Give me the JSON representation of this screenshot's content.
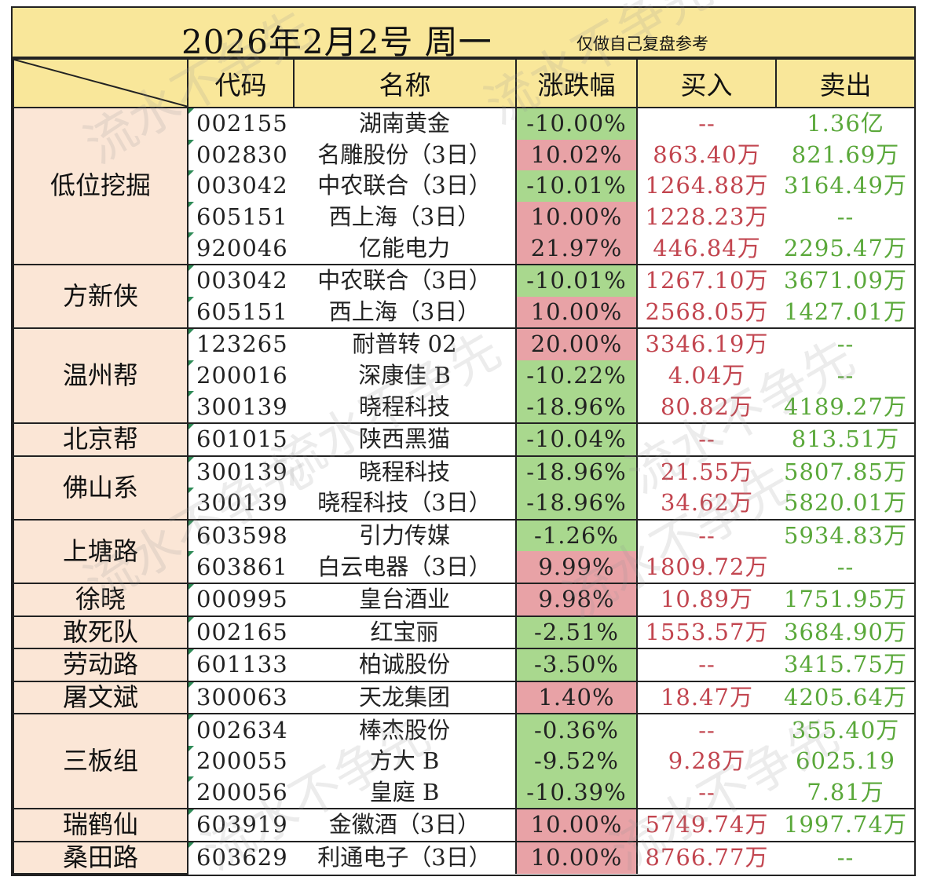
{
  "title": "2026年2月2号  周一",
  "subtitle": "仅做自己复盘参考",
  "watermark": "流水不争先",
  "headers": [
    "代码",
    "名称",
    "涨跌幅",
    "买入",
    "卖出"
  ],
  "colors": {
    "header_bg": "#f9e79a",
    "group_bg": "#fbe6d6",
    "up_bg": "#e8a2a6",
    "down_bg": "#a9d88e",
    "buy_text": "#c2454f",
    "sell_text": "#5aa83a"
  },
  "groups": [
    {
      "name": "低位挖掘",
      "rows": [
        {
          "code": "002155",
          "name": "湖南黄金",
          "change": "-10.00%",
          "dir": "down",
          "buy": "--",
          "sell": "1.36亿"
        },
        {
          "code": "002830",
          "name": "名雕股份（3日）",
          "change": "10.02%",
          "dir": "up",
          "buy": "863.40万",
          "sell": "821.69万"
        },
        {
          "code": "003042",
          "name": "中农联合（3日）",
          "change": "-10.01%",
          "dir": "down",
          "buy": "1264.88万",
          "sell": "3164.49万"
        },
        {
          "code": "605151",
          "name": "西上海（3日）",
          "change": "10.00%",
          "dir": "up",
          "buy": "1228.23万",
          "sell": "--"
        },
        {
          "code": "920046",
          "name": "亿能电力",
          "change": "21.97%",
          "dir": "up",
          "buy": "446.84万",
          "sell": "2295.47万"
        }
      ]
    },
    {
      "name": "方新侠",
      "rows": [
        {
          "code": "003042",
          "name": "中农联合（3日）",
          "change": "-10.01%",
          "dir": "down",
          "buy": "1267.10万",
          "sell": "3671.09万"
        },
        {
          "code": "605151",
          "name": "西上海（3日）",
          "change": "10.00%",
          "dir": "up",
          "buy": "2568.05万",
          "sell": "1427.01万"
        }
      ]
    },
    {
      "name": "温州帮",
      "rows": [
        {
          "code": "123265",
          "name": "耐普转 02",
          "change": "20.00%",
          "dir": "up",
          "buy": "3346.19万",
          "sell": "--"
        },
        {
          "code": "200016",
          "name": "深康佳 B",
          "change": "-10.22%",
          "dir": "down",
          "buy": "4.04万",
          "sell": "--"
        },
        {
          "code": "300139",
          "name": "晓程科技",
          "change": "-18.96%",
          "dir": "down",
          "buy": "80.82万",
          "sell": "4189.27万"
        }
      ]
    },
    {
      "name": "北京帮",
      "rows": [
        {
          "code": "601015",
          "name": "陕西黑猫",
          "change": "-10.04%",
          "dir": "down",
          "buy": "--",
          "sell": "813.51万"
        }
      ]
    },
    {
      "name": "佛山系",
      "rows": [
        {
          "code": "300139",
          "name": "晓程科技",
          "change": "-18.96%",
          "dir": "down",
          "buy": "21.55万",
          "sell": "5807.85万"
        },
        {
          "code": "300139",
          "name": "晓程科技（3日）",
          "change": "-18.96%",
          "dir": "down",
          "buy": "34.62万",
          "sell": "5820.01万"
        }
      ]
    },
    {
      "name": "上塘路",
      "rows": [
        {
          "code": "603598",
          "name": "引力传媒",
          "change": "-1.26%",
          "dir": "down",
          "buy": "--",
          "sell": "5934.83万"
        },
        {
          "code": "603861",
          "name": "白云电器（3日）",
          "change": "9.99%",
          "dir": "up",
          "buy": "1809.72万",
          "sell": "--"
        }
      ]
    },
    {
      "name": "徐晓",
      "rows": [
        {
          "code": "000995",
          "name": "皇台酒业",
          "change": "9.98%",
          "dir": "up",
          "buy": "10.89万",
          "sell": "1751.95万"
        }
      ]
    },
    {
      "name": "敢死队",
      "rows": [
        {
          "code": "002165",
          "name": "红宝丽",
          "change": "-2.51%",
          "dir": "down",
          "buy": "1553.57万",
          "sell": "3684.90万"
        }
      ]
    },
    {
      "name": "劳动路",
      "rows": [
        {
          "code": "601133",
          "name": "柏诚股份",
          "change": "-3.50%",
          "dir": "down",
          "buy": "--",
          "sell": "3415.75万"
        }
      ]
    },
    {
      "name": "屠文斌",
      "rows": [
        {
          "code": "300063",
          "name": "天龙集团",
          "change": "1.40%",
          "dir": "up",
          "buy": "18.47万",
          "sell": "4205.64万"
        }
      ]
    },
    {
      "name": "三板组",
      "rows": [
        {
          "code": "002634",
          "name": "棒杰股份",
          "change": "-0.36%",
          "dir": "down",
          "buy": "--",
          "sell": "355.40万"
        },
        {
          "code": "200055",
          "name": "方大 B",
          "change": "-9.52%",
          "dir": "down",
          "buy": "9.28万",
          "sell": "6025.19"
        },
        {
          "code": "200056",
          "name": "皇庭 B",
          "change": "-10.39%",
          "dir": "down",
          "buy": "--",
          "sell": "7.81万"
        }
      ]
    },
    {
      "name": "瑞鹤仙",
      "rows": [
        {
          "code": "603919",
          "name": "金徽酒（3日）",
          "change": "10.00%",
          "dir": "up",
          "buy": "5749.74万",
          "sell": "1997.74万"
        }
      ]
    },
    {
      "name": "桑田路",
      "rows": [
        {
          "code": "603629",
          "name": "利通电子（3日）",
          "change": "10.00%",
          "dir": "up",
          "buy": "8766.77万",
          "sell": "--"
        }
      ]
    }
  ]
}
